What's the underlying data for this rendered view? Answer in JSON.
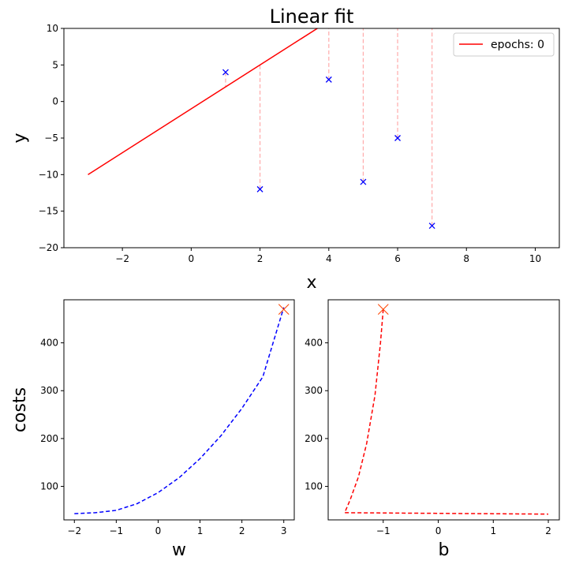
{
  "chart_data": [
    {
      "type": "scatter",
      "title": "Linear fit",
      "xlabel": "x",
      "ylabel": "y",
      "xlim": [
        -3.7,
        10.7
      ],
      "ylim": [
        -20,
        10
      ],
      "xticks": [
        -2,
        0,
        2,
        4,
        6,
        8,
        10
      ],
      "yticks": [
        10,
        5,
        0,
        -5,
        -10,
        -15,
        -20
      ],
      "grid": false,
      "legend_position": "top-right",
      "points": {
        "x": [
          1,
          2,
          4,
          5,
          6,
          7
        ],
        "y": [
          4,
          -12,
          3,
          -11,
          -5,
          -17
        ],
        "marker": "x",
        "color": "#0000ff"
      },
      "fit_line": {
        "name": "epochs: 0",
        "slope": 3,
        "intercept": -1,
        "x": [
          -3,
          10
        ],
        "color": "#ff0000"
      },
      "residuals": {
        "style": "dashed",
        "color": "#ffaaaa"
      }
    },
    {
      "type": "line",
      "xlabel": "w",
      "ylabel": "costs",
      "xlim": [
        -2.25,
        3.25
      ],
      "ylim": [
        30,
        490
      ],
      "xticks": [
        -2,
        -1,
        0,
        1,
        2,
        3
      ],
      "yticks": [
        100,
        200,
        300,
        400
      ],
      "series": [
        {
          "style": "dashed",
          "color": "#0000ff",
          "x": [
            -2.0,
            -1.5,
            -1.0,
            -0.5,
            0.0,
            0.5,
            1.0,
            1.5,
            2.0,
            2.5,
            3.0
          ],
          "y": [
            43,
            45,
            50,
            64,
            87,
            118,
            158,
            206,
            263,
            329,
            474
          ]
        }
      ],
      "marker": {
        "x": 3.0,
        "y": 470,
        "symbol": "x",
        "color": "#ff4400"
      }
    },
    {
      "type": "line",
      "xlabel": "b",
      "xlim": [
        -2.0,
        2.2
      ],
      "ylim": [
        30,
        490
      ],
      "xticks": [
        -1,
        0,
        1,
        2
      ],
      "yticks": [
        100,
        200,
        300,
        400
      ],
      "series": [
        {
          "style": "dashed",
          "color": "#ff0000",
          "x": [
            -1.0,
            -1.05,
            -1.15,
            -1.3,
            -1.45,
            -1.6,
            -1.7,
            2.0
          ],
          "y": [
            470,
            400,
            290,
            190,
            120,
            72,
            45,
            42
          ]
        }
      ],
      "marker": {
        "x": -1.0,
        "y": 470,
        "symbol": "x",
        "color": "#ff4400"
      }
    }
  ]
}
